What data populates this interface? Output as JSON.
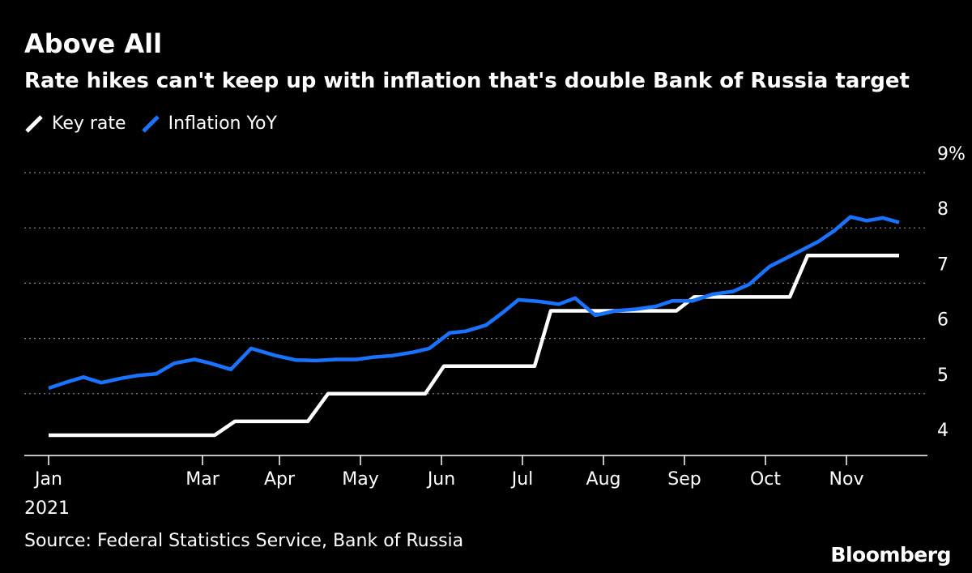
{
  "colors": {
    "background": "#000000",
    "key_rate": "#ffffff",
    "inflation": "#1a73ff",
    "grid": "#8a8a8a"
  },
  "chart_data": {
    "type": "line",
    "title": "Above All",
    "subtitle": "Rate hikes can't keep up with inflation that's double Bank of Russia target",
    "ylim": [
      4,
      9
    ],
    "y_ticks": [
      4,
      5,
      6,
      7,
      8,
      9
    ],
    "y_tick_labels": [
      "4",
      "5",
      "6",
      "7",
      "8",
      "9%"
    ],
    "x_ticks": [
      {
        "label": "Jan",
        "x": 0
      },
      {
        "label": "Mar",
        "x": 1.9
      },
      {
        "label": "Apr",
        "x": 2.85
      },
      {
        "label": "May",
        "x": 3.85
      },
      {
        "label": "Jun",
        "x": 4.85
      },
      {
        "label": "Jul",
        "x": 5.85
      },
      {
        "label": "Aug",
        "x": 6.85
      },
      {
        "label": "Sep",
        "x": 7.85
      },
      {
        "label": "Oct",
        "x": 8.85
      },
      {
        "label": "Nov",
        "x": 9.85
      }
    ],
    "x_sublabel": "2021",
    "xlim": [
      -0.1,
      10.6
    ],
    "series": [
      {
        "name": "Key rate",
        "color": "#ffffff",
        "x": [
          0,
          2.05,
          2.3,
          3.2,
          3.45,
          4.65,
          4.88,
          6.0,
          6.2,
          7.75,
          7.97,
          9.15,
          9.37,
          10.5
        ],
        "y": [
          4.25,
          4.25,
          4.5,
          4.5,
          5.0,
          5.0,
          5.5,
          5.5,
          6.5,
          6.5,
          6.75,
          6.75,
          7.5,
          7.5
        ]
      },
      {
        "name": "Inflation YoY",
        "color": "#1a73ff",
        "x": [
          0,
          0.2,
          0.43,
          0.65,
          0.9,
          1.1,
          1.33,
          1.55,
          1.8,
          2.0,
          2.25,
          2.5,
          2.8,
          3.05,
          3.3,
          3.55,
          3.8,
          4.0,
          4.25,
          4.5,
          4.7,
          4.95,
          5.15,
          5.4,
          5.6,
          5.8,
          6.05,
          6.3,
          6.5,
          6.75,
          7.0,
          7.25,
          7.5,
          7.7,
          7.95,
          8.2,
          8.45,
          8.65,
          8.9,
          9.1,
          9.3,
          9.5,
          9.7,
          9.9,
          10.1,
          10.3,
          10.5
        ],
        "y": [
          5.1,
          5.2,
          5.3,
          5.2,
          5.28,
          5.33,
          5.36,
          5.55,
          5.62,
          5.55,
          5.44,
          5.82,
          5.69,
          5.61,
          5.6,
          5.62,
          5.62,
          5.66,
          5.69,
          5.75,
          5.82,
          6.1,
          6.13,
          6.24,
          6.46,
          6.7,
          6.67,
          6.62,
          6.73,
          6.42,
          6.5,
          6.53,
          6.58,
          6.68,
          6.68,
          6.8,
          6.85,
          6.98,
          7.3,
          7.45,
          7.6,
          7.75,
          7.95,
          8.2,
          8.13,
          8.18,
          8.1
        ]
      }
    ],
    "legend": {
      "position": "top-left",
      "entries": [
        "Key rate",
        "Inflation YoY"
      ]
    },
    "source": "Source: Federal Statistics Service, Bank of Russia"
  },
  "brand": "Bloomberg"
}
